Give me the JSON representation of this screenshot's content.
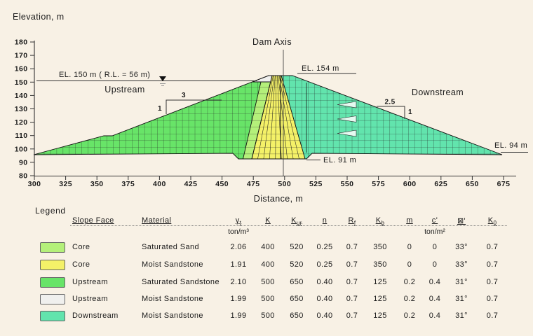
{
  "diagram": {
    "y_axis_title": "Elevation, m",
    "x_axis_title": "Distance, m",
    "x_ticks": [
      "300",
      "325",
      "350",
      "375",
      "400",
      "425",
      "450",
      "475",
      "500",
      "525",
      "550",
      "575",
      "600",
      "625",
      "650",
      "675"
    ],
    "y_ticks": [
      "180",
      "170",
      "160",
      "150",
      "140",
      "130",
      "120",
      "110",
      "100",
      "90",
      "80"
    ],
    "labels": {
      "dam_axis": "Dam Axis",
      "crest_el": "EL. 154 m",
      "water_el": "EL. 150 m ( R.L. = 56 m)",
      "upstream": "Upstream",
      "downstream": "Downstream",
      "core_base_el": "EL. 91 m",
      "toe_el": "EL. 94 m",
      "us_slope_run": "3",
      "us_slope_rise": "1",
      "ds_slope_run": "2.5",
      "ds_slope_rise": "1"
    },
    "zone_colors": {
      "core_saturated_sand": "#b4f07a",
      "core_moist_sandstone": "#f4f168",
      "upstream_saturated": "#68e468",
      "upstream_moist": "#f0f0ee",
      "downstream_moist": "#62e4ad"
    }
  },
  "legend": {
    "title": "Legend",
    "headers": [
      {
        "main": "Slope Face",
        "sub": ""
      },
      {
        "main": "Material",
        "sub": ""
      },
      {
        "main": "γ",
        "sub": "t"
      },
      {
        "main": "K",
        "sub": ""
      },
      {
        "main": "K",
        "sub": "ur"
      },
      {
        "main": "n",
        "sub": ""
      },
      {
        "main": "R",
        "sub": "f"
      },
      {
        "main": "K",
        "sub": "b"
      },
      {
        "main": "m",
        "sub": ""
      },
      {
        "main": "c'",
        "sub": ""
      },
      {
        "main": "⊠'",
        "sub": ""
      },
      {
        "main": "K",
        "sub": "0"
      }
    ],
    "gamma_unit": "ton/m³",
    "c_unit": "ton/m²",
    "rows": [
      {
        "color_key": "core_saturated_sand",
        "slope_face": "Core",
        "material": "Saturated Sand",
        "values": [
          "2.06",
          "400",
          "520",
          "0.25",
          "0.7",
          "350",
          "0",
          "0",
          "33°",
          "0.7"
        ]
      },
      {
        "color_key": "core_moist_sandstone",
        "slope_face": "Core",
        "material": "Moist Sandstone",
        "values": [
          "1.91",
          "400",
          "520",
          "0.25",
          "0.7",
          "350",
          "0",
          "0",
          "33°",
          "0.7"
        ]
      },
      {
        "color_key": "upstream_saturated",
        "slope_face": "Upstream",
        "material": "Saturated Sandstone",
        "values": [
          "2.10",
          "500",
          "650",
          "0.40",
          "0.7",
          "125",
          "0.2",
          "0.4",
          "31°",
          "0.7"
        ]
      },
      {
        "color_key": "upstream_moist",
        "slope_face": "Upstream",
        "material": "Moist Sandstone",
        "values": [
          "1.99",
          "500",
          "650",
          "0.40",
          "0.7",
          "125",
          "0.2",
          "0.4",
          "31°",
          "0.7"
        ]
      },
      {
        "color_key": "downstream_moist",
        "slope_face": "Downstream",
        "material": "Moist Sandstone",
        "values": [
          "1.99",
          "500",
          "650",
          "0.40",
          "0.7",
          "125",
          "0.2",
          "0.4",
          "31°",
          "0.7"
        ]
      }
    ]
  }
}
